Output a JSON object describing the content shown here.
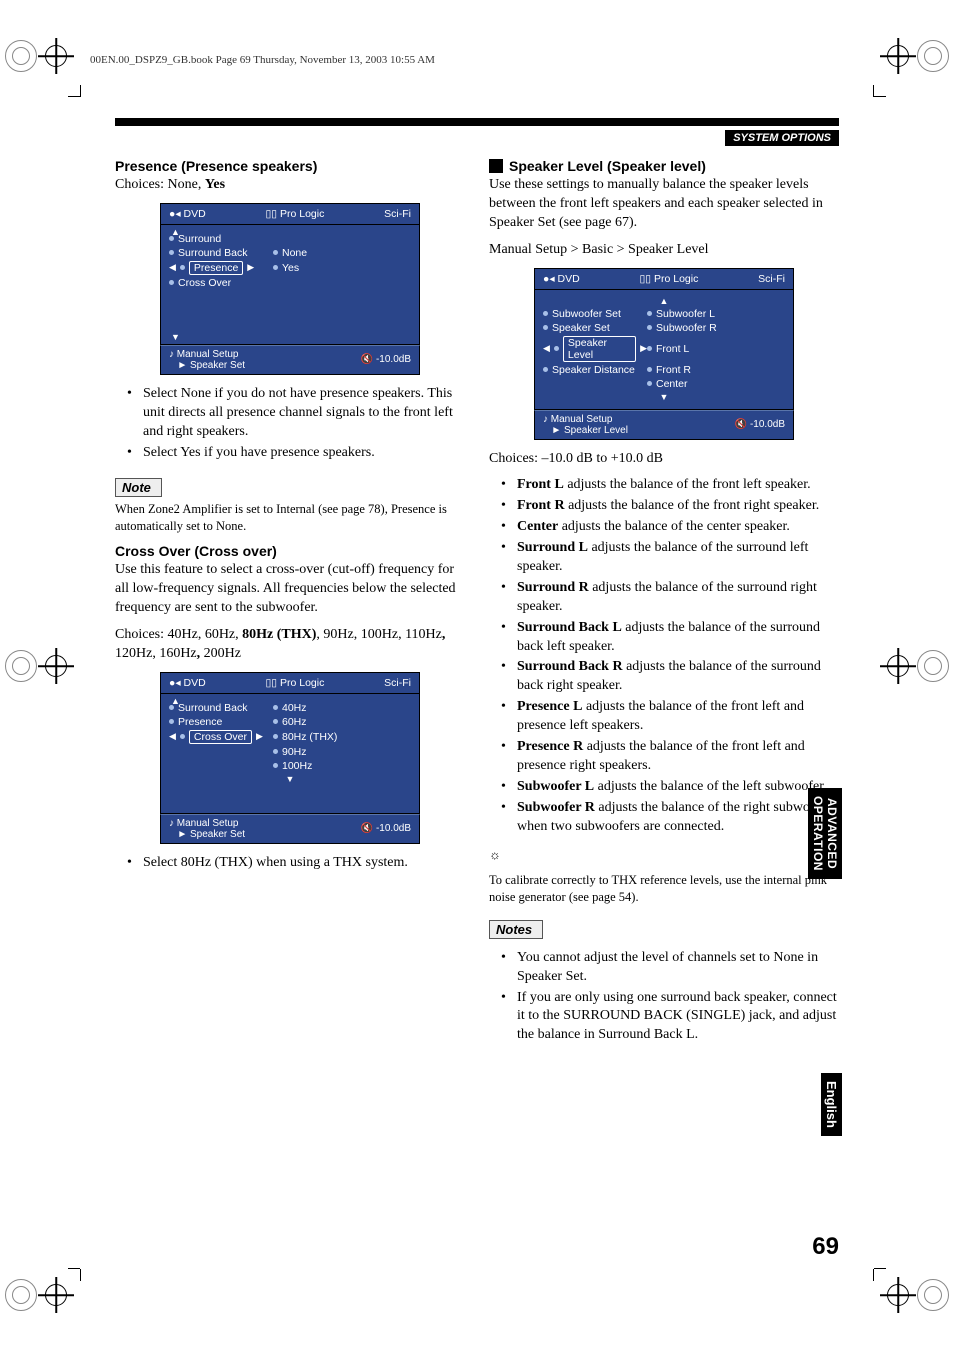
{
  "meta": {
    "header": "00EN.00_DSPZ9_GB.book  Page 69  Thursday, November 13, 2003  10:55 AM"
  },
  "section_header": "SYSTEM OPTIONS",
  "left": {
    "h1": "Presence (Presence speakers)",
    "choices": "Choices: None, ",
    "choices_bold": "Yes",
    "osd1": {
      "dvd": "DVD",
      "prologic": "Pro Logic",
      "scifi": "Sci-Fi",
      "items": [
        {
          "l": "Surround",
          "r": ""
        },
        {
          "l": "Surround Back",
          "r": "None"
        },
        {
          "l": "Presence",
          "r": "Yes",
          "sel": true
        },
        {
          "l": "Cross Over",
          "r": ""
        }
      ],
      "path1": "Manual Setup",
      "path2": "Speaker Set",
      "vol": "-10.0dB"
    },
    "b1": "Select None if you do not have presence speakers. This unit directs all presence channel signals to the front left and right speakers.",
    "b2": "Select Yes if you have presence speakers.",
    "note_label": "Note",
    "note_text": "When Zone2 Amplifier is set to Internal (see page 78), Presence is automatically set to None.",
    "h2": "Cross Over (Cross over)",
    "cross_text": "Use this feature to select a cross-over (cut-off) frequency for all low-frequency signals. All frequencies below the selected frequency are sent to the subwoofer.",
    "cross_choices_a": "Choices: 40Hz, 60Hz, ",
    "cross_choices_b": "80Hz (THX)",
    "cross_choices_c": ", 90Hz, 100Hz, 110Hz",
    "cross_choices_d": ", ",
    "cross_choices_e": "120Hz, 160Hz",
    "cross_choices_f": ", ",
    "cross_choices_g": "200Hz",
    "osd2": {
      "dvd": "DVD",
      "prologic": "Pro Logic",
      "scifi": "Sci-Fi",
      "items": [
        {
          "l": "Surround Back",
          "r": "40Hz"
        },
        {
          "l": "Presence",
          "r": "60Hz"
        },
        {
          "l": "Cross Over",
          "r": "80Hz (THX)",
          "sel": true
        },
        {
          "l": "",
          "r": "90Hz"
        },
        {
          "l": "",
          "r": "100Hz"
        }
      ],
      "path1": "Manual Setup",
      "path2": "Speaker Set",
      "vol": "-10.0dB"
    },
    "b3": "Select 80Hz (THX) when using a THX system."
  },
  "right": {
    "h1": "Speaker Level (Speaker level)",
    "intro": "Use these settings to manually balance the speaker levels between the front left speakers and each speaker selected in Speaker Set (see page 67).",
    "path": "Manual Setup > Basic > Speaker Level",
    "osd": {
      "dvd": "DVD",
      "prologic": "Pro Logic",
      "scifi": "Sci-Fi",
      "items": [
        {
          "l": "Subwoofer Set",
          "r": "Subwoofer L"
        },
        {
          "l": "Speaker Set",
          "r": "Subwoofer R"
        },
        {
          "l": "Speaker Level",
          "r": "Front L",
          "sel": true
        },
        {
          "l": "Speaker Distance",
          "r": "Front R"
        },
        {
          "l": "",
          "r": "Center"
        }
      ],
      "path1": "Manual Setup",
      "path2": "Speaker Level",
      "vol": "-10.0dB"
    },
    "range": "Choices: –10.0 dB to +10.0 dB",
    "items": [
      {
        "b": "Front L",
        "t": " adjusts the balance of the front left speaker."
      },
      {
        "b": "Front R",
        "t": " adjusts the balance of the front right speaker."
      },
      {
        "b": "Center",
        "t": " adjusts the balance of the center speaker."
      },
      {
        "b": "Surround L",
        "t": " adjusts the balance of the surround left speaker."
      },
      {
        "b": "Surround R",
        "t": " adjusts the balance of the surround right speaker."
      },
      {
        "b": "Surround Back L",
        "t": " adjusts the balance of the surround back left speaker."
      },
      {
        "b": "Surround Back R",
        "t": " adjusts the balance of the surround back right speaker."
      },
      {
        "b": "Presence L",
        "t": " adjusts the balance of the front left and presence left speakers."
      },
      {
        "b": "Presence R",
        "t": " adjusts the balance of the front left and presence right speakers."
      },
      {
        "b": "Subwoofer L",
        "t": " adjusts the balance of the left subwoofer."
      },
      {
        "b": "Subwoofer R",
        "t": " adjusts the balance of the right subwoofer when two subwoofers are connected."
      }
    ],
    "tip": "To calibrate correctly to THX reference levels, use the internal pink noise generator (see page 54).",
    "notes_label": "Notes",
    "n1": "You cannot adjust the level of channels set to None in Speaker Set.",
    "n2": "If you are only using one surround back speaker, connect it to the SURROUND BACK (SINGLE) jack, and adjust the balance in Surround Back L."
  },
  "tab1a": "ADVANCED",
  "tab1b": "OPERATION",
  "tab2": "English",
  "page": "69"
}
